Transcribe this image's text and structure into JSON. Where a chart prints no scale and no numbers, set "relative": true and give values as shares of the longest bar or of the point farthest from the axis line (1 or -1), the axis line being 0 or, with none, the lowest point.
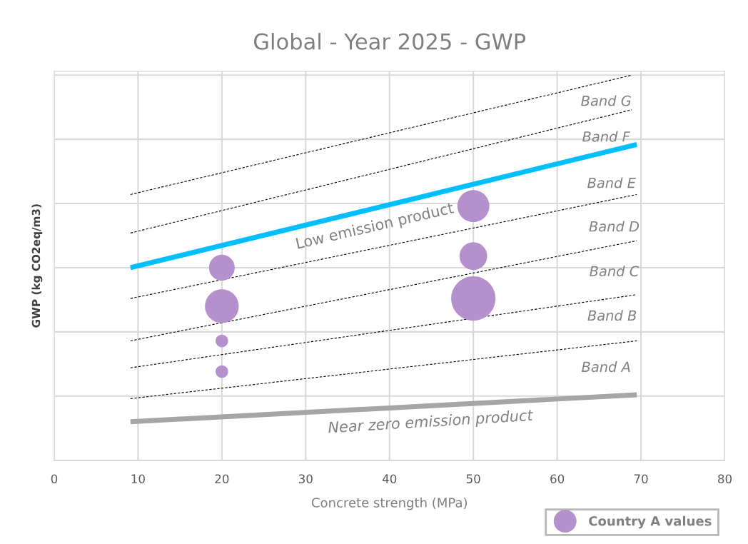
{
  "chart_data": {
    "type": "bubble",
    "title": "Global - Year 2025 - GWP",
    "xlabel": "Concrete strength (MPa)",
    "ylabel": "GWP (kg CO2eq/m3)",
    "relative": true,
    "xlim": [
      0,
      80
    ],
    "xticks": [
      0,
      10,
      20,
      30,
      40,
      50,
      60,
      70,
      80
    ],
    "grid": true,
    "legend": "bottom right",
    "series": [
      {
        "type": "line",
        "color": "#000000",
        "line_style": "dashed",
        "x": [
          9.1,
          68.9
        ],
        "values": [
          0.69,
          1.0
        ]
      },
      {
        "type": "line",
        "color": "#000000",
        "line_style": "dashed",
        "x": [
          9.1,
          68.9
        ],
        "values": [
          0.59,
          0.91
        ]
      },
      {
        "type": "line",
        "color": "#00bfff",
        "line_style": "solid",
        "x": [
          9.1,
          69.5
        ],
        "values": [
          0.5,
          0.82
        ]
      },
      {
        "type": "line",
        "color": "#000000",
        "line_style": "dashed",
        "x": [
          9.1,
          69.5
        ],
        "values": [
          0.42,
          0.69
        ]
      },
      {
        "type": "line",
        "color": "#000000",
        "line_style": "dashed",
        "x": [
          9.1,
          69.5
        ],
        "values": [
          0.31,
          0.57
        ]
      },
      {
        "type": "line",
        "color": "#000000",
        "line_style": "dashed",
        "x": [
          9.1,
          69.5
        ],
        "values": [
          0.24,
          0.43
        ]
      },
      {
        "type": "line",
        "color": "#000000",
        "line_style": "dashed",
        "x": [
          9.1,
          69.5
        ],
        "values": [
          0.16,
          0.31
        ]
      },
      {
        "type": "line",
        "color": "#a6a6a6",
        "line_style": "solid",
        "x": [
          9.1,
          69.5
        ],
        "values": [
          0.1,
          0.17
        ]
      },
      {
        "name": "Country A values",
        "color": "#b491cc",
        "x": [
          20,
          20,
          20,
          20,
          50,
          50,
          50
        ],
        "values": [
          0.5,
          0.4,
          0.31,
          0.23,
          0.66,
          0.53,
          0.42
        ],
        "sizes": [
          0.34,
          0.58,
          0.08,
          0.08,
          0.52,
          0.39,
          1.0
        ]
      }
    ],
    "annotations": [
      "Band G",
      "Band F",
      "Band E",
      "Band D",
      "Band C",
      "Band B",
      "Band A",
      "Low emission product",
      "Near zero emission product"
    ]
  }
}
